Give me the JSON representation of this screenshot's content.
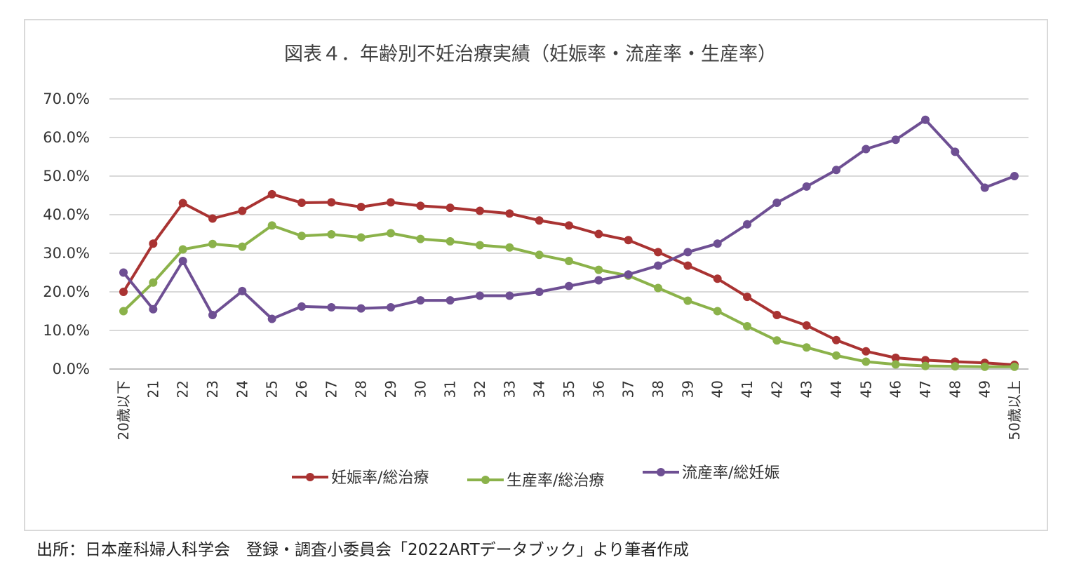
{
  "chart_data": {
    "type": "line",
    "title": "図表４．年齢別不妊治療実績（妊娠率・流産率・生産率）",
    "xlabel": "",
    "ylabel": "",
    "ylim": [
      0,
      70
    ],
    "y_ticks": [
      "0.0%",
      "10.0%",
      "20.0%",
      "30.0%",
      "40.0%",
      "50.0%",
      "60.0%",
      "70.0%"
    ],
    "grid": true,
    "legend_position": "bottom",
    "categories": [
      "20歳以下",
      "21",
      "22",
      "23",
      "24",
      "25",
      "26",
      "27",
      "28",
      "29",
      "30",
      "31",
      "32",
      "33",
      "34",
      "35",
      "36",
      "37",
      "38",
      "39",
      "40",
      "41",
      "42",
      "43",
      "44",
      "45",
      "46",
      "47",
      "48",
      "49",
      "50歳以上"
    ],
    "series": [
      {
        "name": "妊娠率/総治療",
        "color": "#a93332",
        "values": [
          20.0,
          32.5,
          43.0,
          39.0,
          41.0,
          45.3,
          43.1,
          43.2,
          42.0,
          43.2,
          42.3,
          41.8,
          41.0,
          40.3,
          38.5,
          37.2,
          35.0,
          33.4,
          30.3,
          26.8,
          23.4,
          18.7,
          14.0,
          11.3,
          7.5,
          4.6,
          2.9,
          2.3,
          1.9,
          1.6,
          1.1
        ]
      },
      {
        "name": "生産率/総治療",
        "color": "#8bb24a",
        "values": [
          15.0,
          22.4,
          31.0,
          32.4,
          31.7,
          37.2,
          34.5,
          34.9,
          34.1,
          35.2,
          33.7,
          33.1,
          32.1,
          31.5,
          29.6,
          28.0,
          25.7,
          24.2,
          21.0,
          17.7,
          15.0,
          11.1,
          7.4,
          5.6,
          3.5,
          1.9,
          1.2,
          0.8,
          0.7,
          0.6,
          0.6
        ]
      },
      {
        "name": "流産率/総妊娠",
        "color": "#6e4f93",
        "values": [
          25.0,
          15.5,
          28.0,
          14.0,
          20.2,
          13.0,
          16.2,
          16.0,
          15.7,
          16.0,
          17.8,
          17.8,
          19.0,
          19.0,
          20.0,
          21.5,
          23.0,
          24.5,
          26.8,
          30.3,
          32.5,
          37.5,
          43.1,
          47.3,
          51.6,
          57.0,
          59.4,
          64.6,
          56.3,
          47.0,
          50.0
        ]
      }
    ]
  },
  "source_note": "出所：日本産科婦人科学会　登録・調査小委員会「2022ARTデータブック」より筆者作成"
}
